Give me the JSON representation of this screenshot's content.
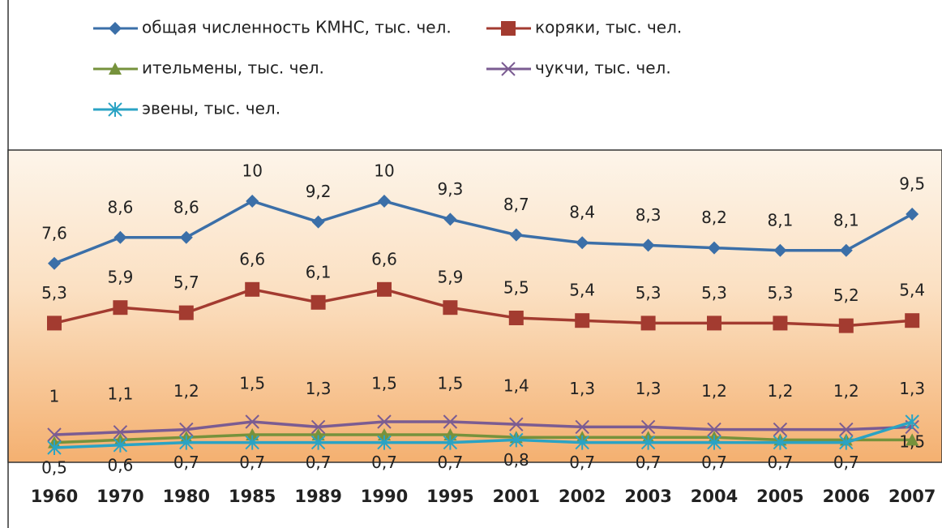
{
  "chart_data": {
    "type": "line",
    "categories": [
      "1960",
      "1970",
      "1980",
      "1985",
      "1989",
      "1990",
      "1995",
      "2001",
      "2002",
      "2003",
      "2004",
      "2005",
      "2006",
      "2007"
    ],
    "ylim": [
      0,
      12
    ],
    "series": [
      {
        "name": "общая численность КМНС, тыс. чел.",
        "color": "#3b6fa8",
        "marker": "diamond",
        "values": [
          7.6,
          8.6,
          8.6,
          10,
          9.2,
          10,
          9.3,
          8.7,
          8.4,
          8.3,
          8.2,
          8.1,
          8.1,
          9.5
        ],
        "value_labels": [
          "7,6",
          "8,6",
          "8,6",
          "10",
          "9,2",
          "10",
          "9,3",
          "8,7",
          "8,4",
          "8,3",
          "8,2",
          "8,1",
          "8,1",
          "9,5"
        ]
      },
      {
        "name": "коряки, тыс. чел.",
        "color": "#a33b30",
        "marker": "square",
        "values": [
          5.3,
          5.9,
          5.7,
          6.6,
          6.1,
          6.6,
          5.9,
          5.5,
          5.4,
          5.3,
          5.3,
          5.3,
          5.2,
          5.4
        ],
        "value_labels": [
          "5,3",
          "5,9",
          "5,7",
          "6,6",
          "6,1",
          "6,6",
          "5,9",
          "5,5",
          "5,4",
          "5,3",
          "5,3",
          "5,3",
          "5,2",
          "5,4"
        ]
      },
      {
        "name": "ительмены, тыс. чел.",
        "color": "#76923c",
        "marker": "triangle",
        "values": [
          0.7,
          0.8,
          0.9,
          1.0,
          1.0,
          1.0,
          1.0,
          0.9,
          0.9,
          0.9,
          0.9,
          0.8,
          0.8,
          0.8
        ]
      },
      {
        "name": "чукчи, тыс. чел.",
        "color": "#7b5c92",
        "marker": "x",
        "values": [
          1,
          1.1,
          1.2,
          1.5,
          1.3,
          1.5,
          1.5,
          1.4,
          1.3,
          1.3,
          1.2,
          1.2,
          1.2,
          1.3
        ],
        "value_labels": [
          "1",
          "1,1",
          "1,2",
          "1,5",
          "1,3",
          "1,5",
          "1,5",
          "1,4",
          "1,3",
          "1,3",
          "1,2",
          "1,2",
          "1,2",
          "1,3"
        ]
      },
      {
        "name": "эвены, тыс. чел.",
        "color": "#2aa3c4",
        "marker": "star",
        "values": [
          0.5,
          0.6,
          0.7,
          0.7,
          0.7,
          0.7,
          0.7,
          0.8,
          0.7,
          0.7,
          0.7,
          0.7,
          0.7,
          1.5
        ],
        "value_labels": [
          "0,5",
          "0,6",
          "0,7",
          "0,7",
          "0,7",
          "0,7",
          "0,7",
          "0,8",
          "0,7",
          "0,7",
          "0,7",
          "0,7",
          "0,7",
          "1,5"
        ]
      }
    ]
  }
}
